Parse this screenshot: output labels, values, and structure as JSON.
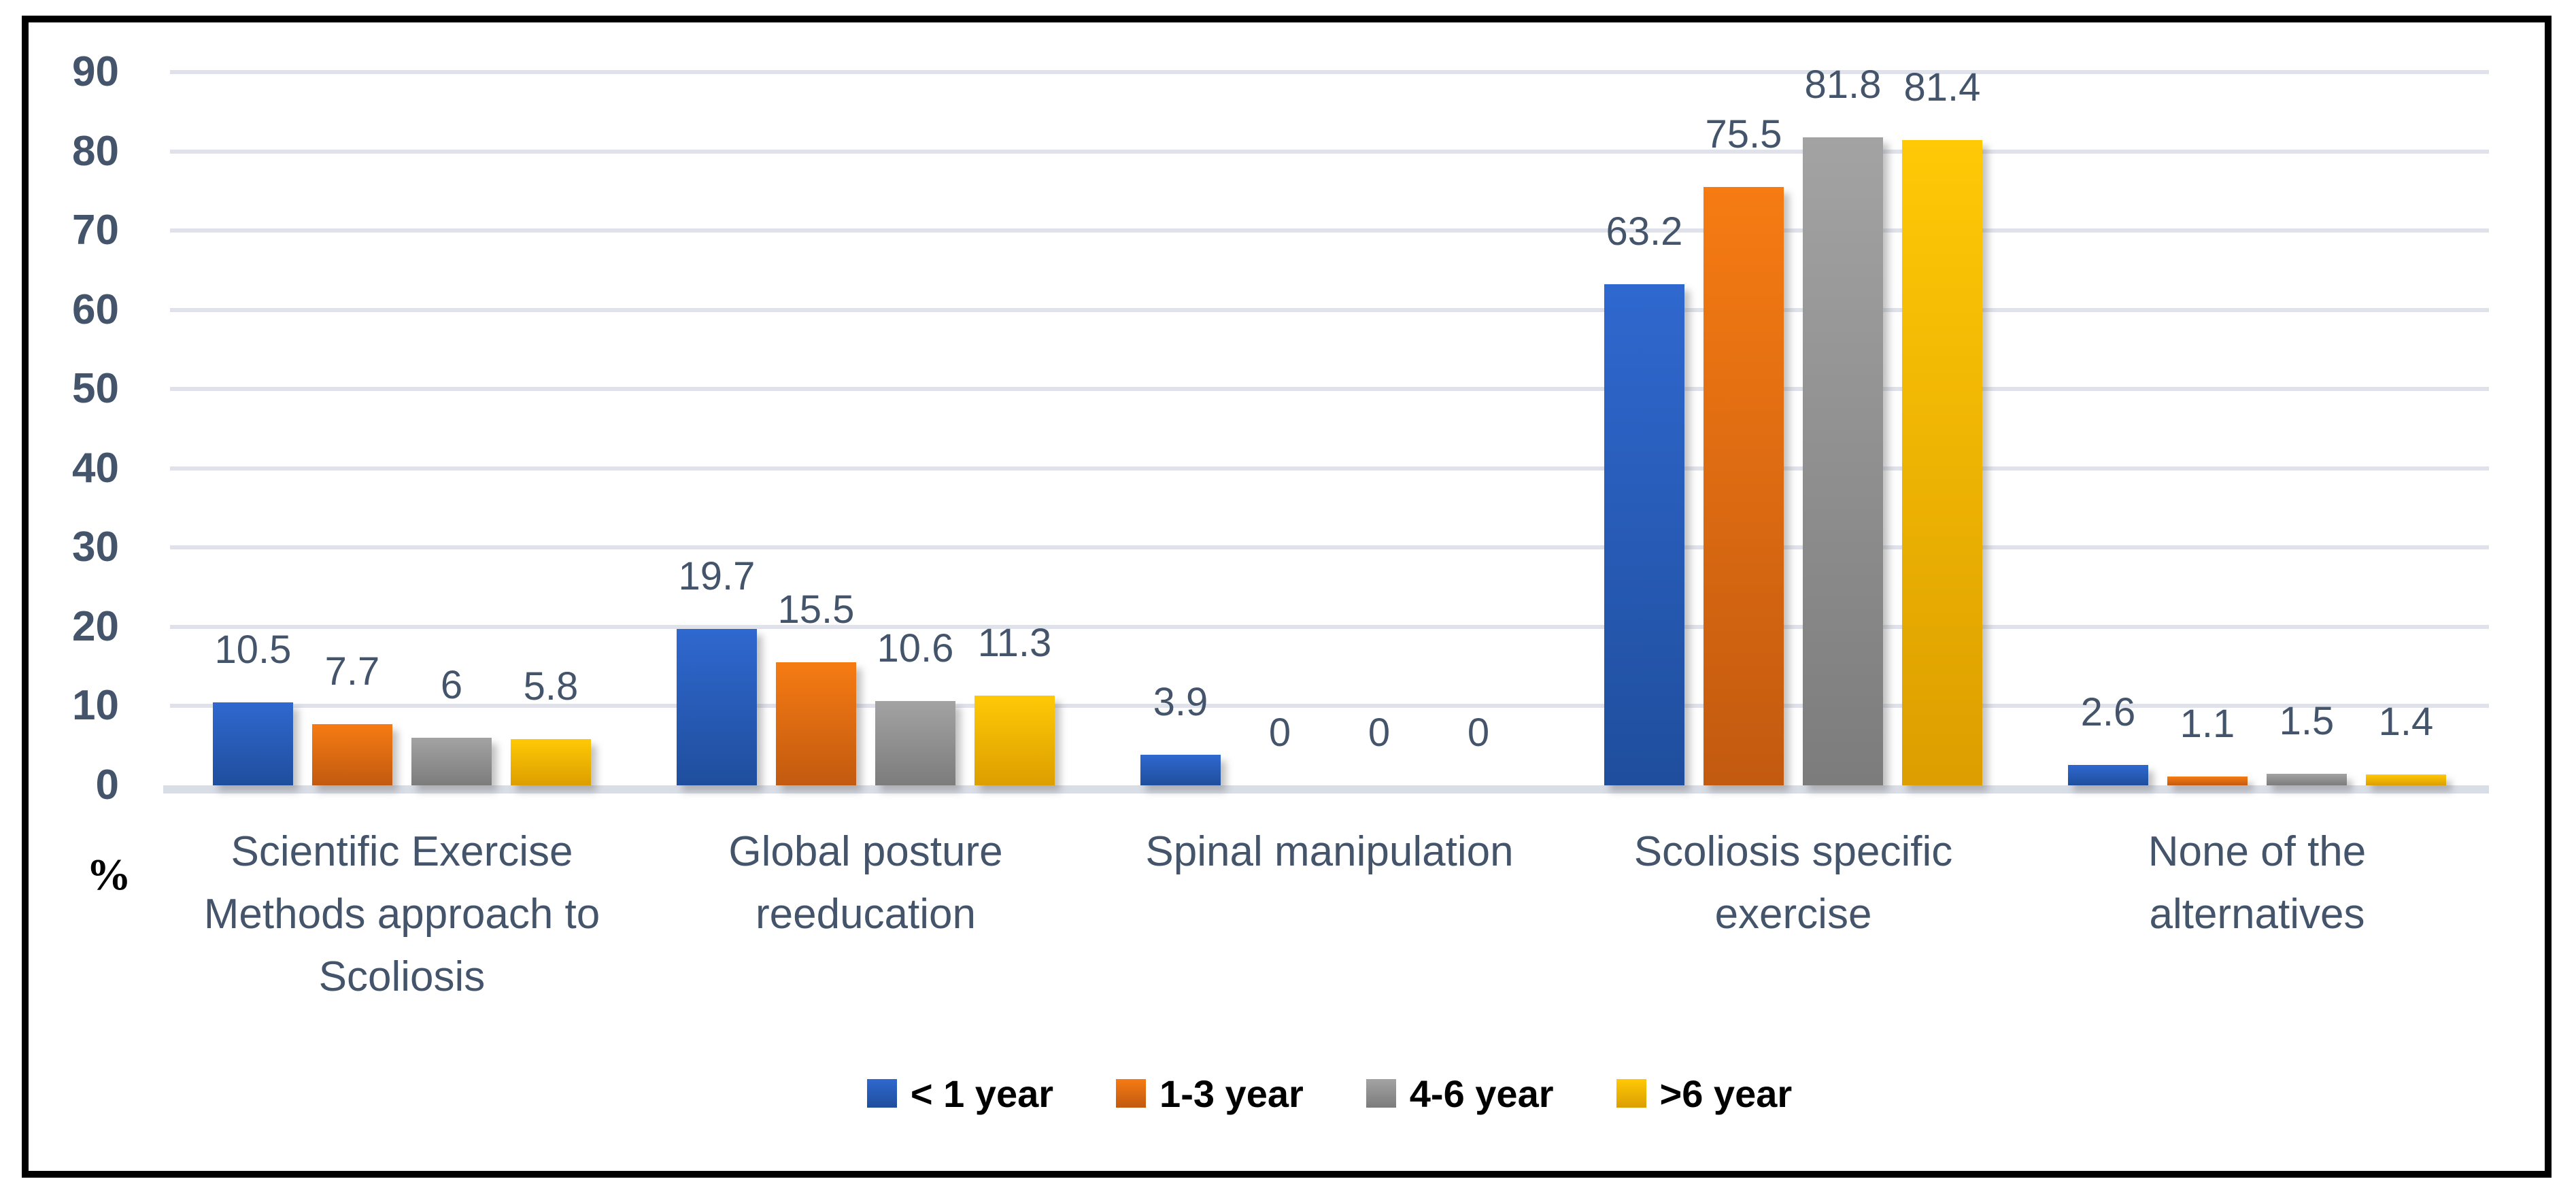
{
  "chart_data": {
    "type": "bar",
    "title": "",
    "ylabel": "%",
    "categories": [
      "Scientific Exercise Methods approach to Scoliosis",
      "Global posture reeducation",
      "Spinal manipulation",
      "Scoliosis specific exercise",
      "None of the alternatives"
    ],
    "category_lines": [
      [
        "Scientific Exercise",
        "Methods approach to",
        "Scoliosis"
      ],
      [
        "Global posture",
        "reeducation"
      ],
      [
        "Spinal manipulation"
      ],
      [
        "Scoliosis specific",
        "exercise"
      ],
      [
        "None of the",
        "alternatives"
      ]
    ],
    "series": [
      {
        "name": "< 1 year",
        "values": [
          10.5,
          19.7,
          3.9,
          63.2,
          2.6
        ],
        "color_top": "#2F68CF",
        "color_bottom": "#1F4E9D"
      },
      {
        "name": "1-3 year",
        "values": [
          7.7,
          15.5,
          0,
          75.5,
          1.1
        ],
        "color_top": "#F67B13",
        "color_bottom": "#C25A10"
      },
      {
        "name": "4-6 year",
        "values": [
          6,
          10.6,
          0,
          81.8,
          1.5
        ],
        "color_top": "#A3A3A3",
        "color_bottom": "#7C7C7C"
      },
      {
        "name": ">6 year",
        "values": [
          5.8,
          11.3,
          0,
          81.4,
          1.4
        ],
        "color_top": "#FFC906",
        "color_bottom": "#DC9E00"
      }
    ],
    "ylim": [
      0,
      90
    ],
    "yticks": [
      0,
      10,
      20,
      30,
      40,
      50,
      60,
      70,
      80,
      90
    ],
    "grid": true,
    "legend_position": "bottom",
    "colors": {
      "text": "#44546A",
      "grid_line": "#DFE2EA",
      "axis_line": "#D9DDE6",
      "legend_text": "#000000",
      "frame_border": "#000000",
      "background": "#FFFFFF"
    }
  }
}
